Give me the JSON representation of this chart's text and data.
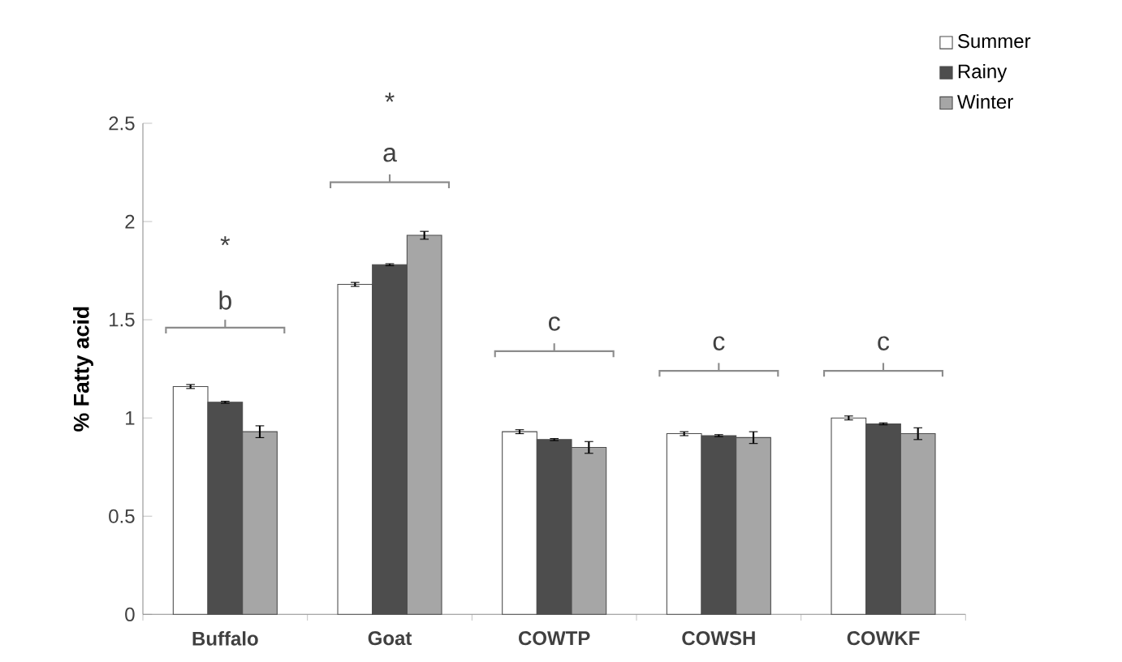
{
  "chart_data": {
    "type": "bar",
    "ylabel": "% Fatty acid",
    "categories": [
      "Buffalo",
      "Goat",
      "COWTP",
      "COWSH",
      "COWKF"
    ],
    "series": [
      {
        "name": "Summer",
        "color": "#ffffff",
        "values": [
          1.16,
          1.68,
          0.93,
          0.92,
          1.0
        ],
        "errors": [
          0.01,
          0.01,
          0.01,
          0.01,
          0.01
        ]
      },
      {
        "name": "Rainy",
        "color": "#4d4d4d",
        "values": [
          1.08,
          1.78,
          0.89,
          0.91,
          0.97
        ],
        "errors": [
          0.005,
          0.005,
          0.005,
          0.005,
          0.005
        ]
      },
      {
        "name": "Winter",
        "color": "#a6a6a6",
        "values": [
          0.93,
          1.93,
          0.85,
          0.9,
          0.92
        ],
        "errors": [
          0.03,
          0.02,
          0.03,
          0.03,
          0.03
        ]
      }
    ],
    "ylim": [
      0,
      2.5
    ],
    "yticks": [
      0,
      0.5,
      1,
      1.5,
      2,
      2.5
    ],
    "legend": "top right",
    "annotations": [
      "*",
      "b",
      "*",
      "a",
      "c",
      "c",
      "c"
    ]
  }
}
